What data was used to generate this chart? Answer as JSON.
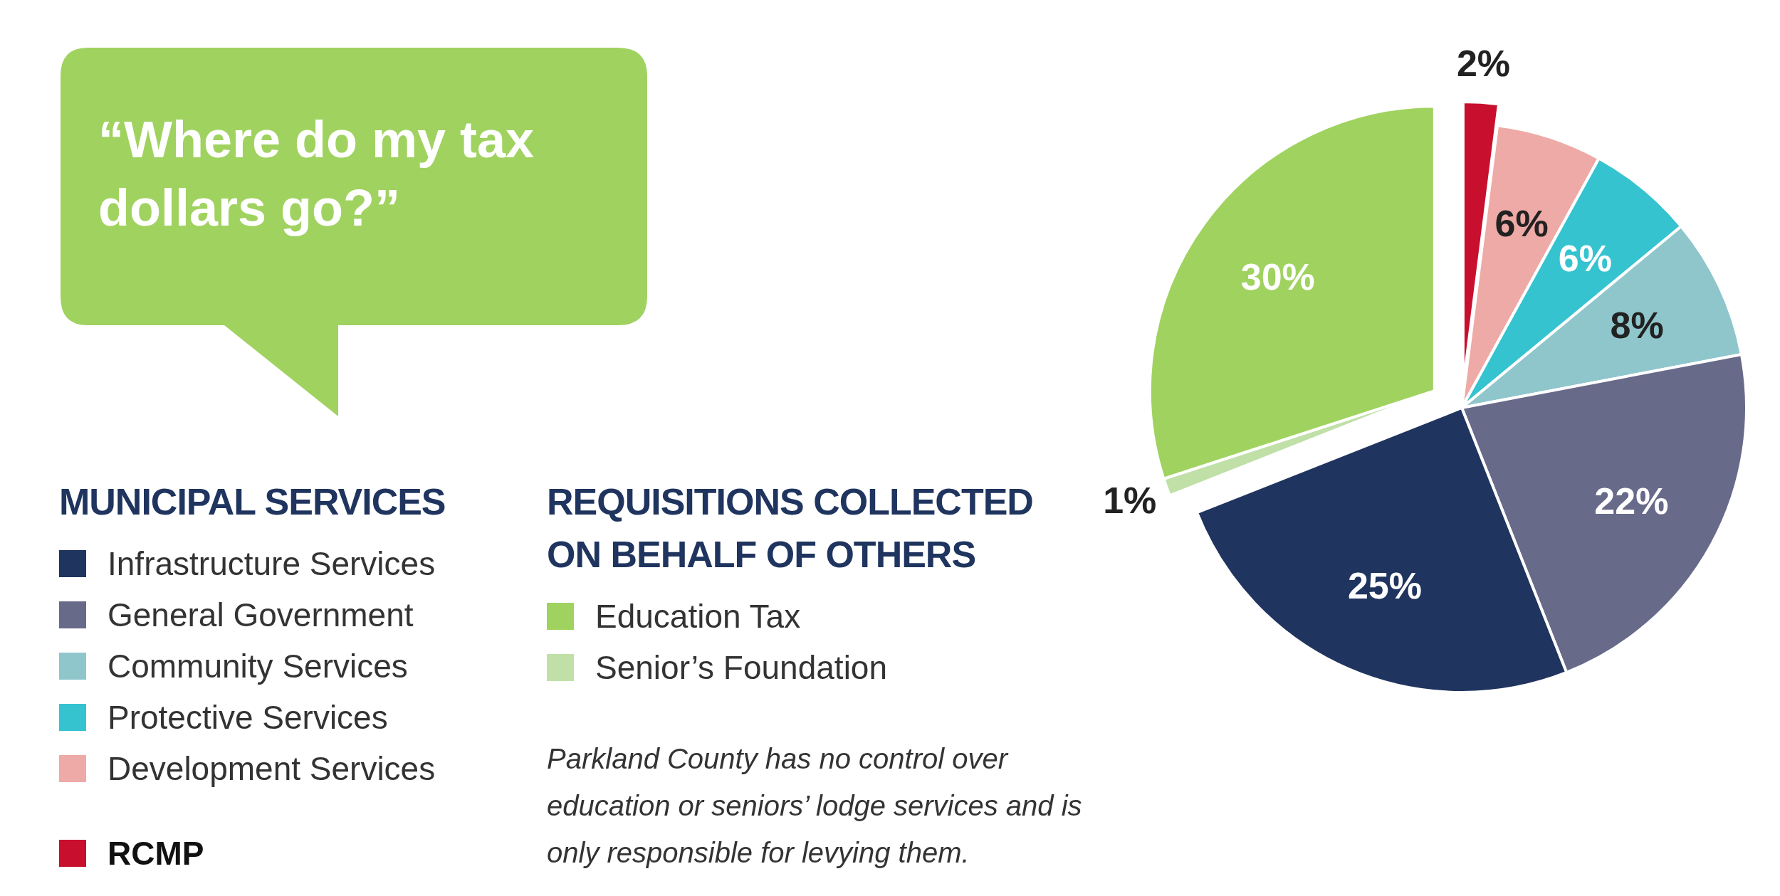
{
  "chart_data": {
    "type": "pie",
    "title": "“Where do my tax dollars go?”",
    "categories": [
      "RCMP",
      "Development Services",
      "Protective Services",
      "Community Services",
      "General Government",
      "Infrastructure Services",
      "Senior’s Foundation",
      "Education Tax"
    ],
    "values": [
      2,
      6,
      6,
      8,
      22,
      25,
      1,
      30
    ],
    "colors": [
      "#c8102e",
      "#eeaaa6",
      "#35c3d0",
      "#8fc6cc",
      "#686a8a",
      "#1f345e",
      "#c0e0a8",
      "#a0d260"
    ],
    "value_labels": [
      "2%",
      "6%",
      "6%",
      "8%",
      "22%",
      "25%",
      "1%",
      "30%"
    ],
    "legend": "left",
    "annotations": [
      "MUNICIPAL SERVICES",
      "REQUISITIONS COLLECTED ON BEHALF OF OTHERS",
      "Parkland County has no control over education or seniors’ lodge services and is only responsible for levying them."
    ]
  }
}
